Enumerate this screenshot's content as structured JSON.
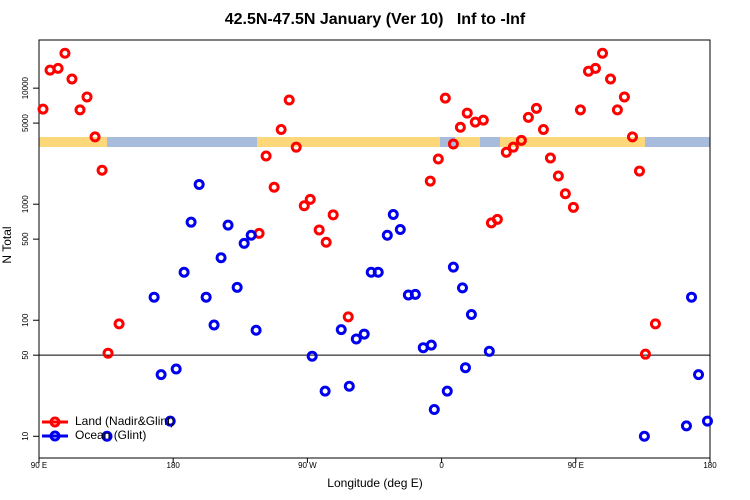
{
  "chart_data": {
    "type": "scatter",
    "title": "42.5N-47.5N January (Ver 10)   Inf to -Inf",
    "x_label": "Longitude (deg E)",
    "y_label": "N Total",
    "ylog": true,
    "hline": 50,
    "xlim": [
      90,
      540
    ],
    "ylim": [
      6.5,
      26000
    ],
    "xticks": [
      {
        "value": 90,
        "label": "90 E"
      },
      180,
      {
        "value": 270,
        "label": "90 W"
      },
      {
        "value": 360,
        "label": "0"
      },
      {
        "value": 450,
        "label": "90 E"
      },
      {
        "value": 540,
        "label": "180"
      }
    ],
    "yticks": [
      10,
      50,
      100,
      500,
      1000,
      5000,
      10000
    ],
    "legend": "bottom-left",
    "series": [
      {
        "name": "Land (Nadir&Glint)",
        "color": "#ff0000",
        "x": [
          92.7,
          97.4,
          102.8,
          107.4,
          112.1,
          117.5,
          122.2,
          127.6,
          132.3,
          136.3,
          143.7,
          237.6,
          242.3,
          247.7,
          252.4,
          257.8,
          262.5,
          267.9,
          271.9,
          277.9,
          282.6,
          287.3,
          297.4,
          352.4,
          357.8,
          362.5,
          367.9,
          372.6,
          377.2,
          382.6,
          388.0,
          393.4,
          397.4,
          403.4,
          408.1,
          413.5,
          418.2,
          423.6,
          428.3,
          433.0,
          438.3,
          443.0,
          448.4,
          453.1,
          458.5,
          463.2,
          467.9,
          473.3,
          477.9,
          482.6,
          488.0,
          492.7,
          496.7,
          503.4
        ],
        "values": [
          6600,
          14300,
          14800,
          20000,
          12000,
          6500,
          8400,
          3800,
          1960,
          52,
          93,
          560,
          2600,
          1400,
          4400,
          7900,
          3100,
          970,
          1100,
          600,
          470,
          810,
          107,
          1580,
          2450,
          8200,
          3300,
          4600,
          6100,
          5100,
          5300,
          690,
          740,
          2800,
          3100,
          3550,
          5600,
          6700,
          4400,
          2500,
          1750,
          1230,
          940,
          6500,
          14000,
          14800,
          20000,
          12000,
          6500,
          8400,
          3800,
          1930,
          51,
          93
        ]
      },
      {
        "name": "Ocean (Glint)",
        "color": "#0000ee",
        "x": [
          135.6,
          167.2,
          171.9,
          178.0,
          182.0,
          187.3,
          192.0,
          197.4,
          202.1,
          207.4,
          212.1,
          216.8,
          222.9,
          227.6,
          232.3,
          235.6,
          273.2,
          281.9,
          292.7,
          298.1,
          302.8,
          308.1,
          312.8,
          317.5,
          323.6,
          327.6,
          332.3,
          337.7,
          342.4,
          347.7,
          353.1,
          355.1,
          363.8,
          367.9,
          374.0,
          376.0,
          380.0,
          392.0,
          496.0,
          524.2,
          527.6,
          532.3,
          538.3
        ],
        "values": [
          10,
          158,
          34,
          13.5,
          38,
          259,
          700,
          1480,
          158,
          91,
          346,
          660,
          192,
          460,
          540,
          82,
          49,
          24.5,
          83,
          27,
          69,
          76,
          259,
          259,
          540,
          815,
          605,
          165,
          167,
          58,
          61,
          17,
          24.5,
          287,
          190,
          39,
          112,
          54,
          10,
          12.3,
          158,
          34,
          13.5
        ]
      }
    ]
  }
}
